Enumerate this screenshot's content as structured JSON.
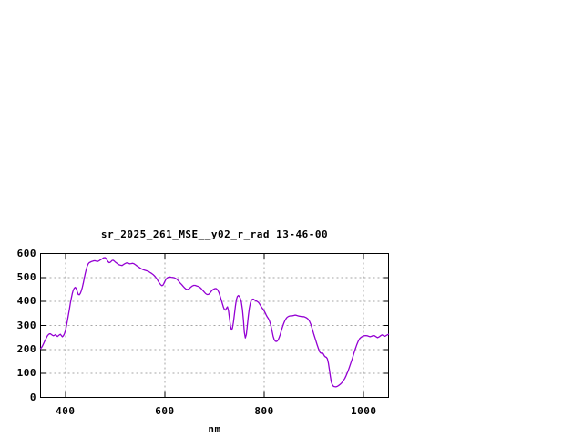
{
  "chart_data": {
    "type": "line",
    "title": "sr_2025_261_MSE__y02_r_rad 13-46-00",
    "xlabel": "nm",
    "ylabel": "",
    "xlim": [
      350,
      1050
    ],
    "ylim": [
      0,
      600
    ],
    "x_ticks": [
      400,
      600,
      800,
      1000
    ],
    "y_ticks": [
      0,
      100,
      200,
      300,
      400,
      500,
      600
    ],
    "grid": "dashed-gray-at-major-ticks",
    "legend": "none",
    "line_color": "#9400d3",
    "points": [
      [
        350,
        204
      ],
      [
        352,
        208
      ],
      [
        354,
        215
      ],
      [
        356,
        224
      ],
      [
        358,
        233
      ],
      [
        360,
        241
      ],
      [
        362,
        249
      ],
      [
        364,
        257
      ],
      [
        366,
        262
      ],
      [
        368,
        265
      ],
      [
        370,
        265
      ],
      [
        372,
        262
      ],
      [
        374,
        259
      ],
      [
        376,
        257
      ],
      [
        378,
        259
      ],
      [
        380,
        262
      ],
      [
        382,
        258
      ],
      [
        384,
        254
      ],
      [
        386,
        257
      ],
      [
        388,
        261
      ],
      [
        390,
        263
      ],
      [
        392,
        258
      ],
      [
        394,
        253
      ],
      [
        396,
        257
      ],
      [
        398,
        265
      ],
      [
        400,
        278
      ],
      [
        402,
        297
      ],
      [
        404,
        320
      ],
      [
        406,
        344
      ],
      [
        408,
        368
      ],
      [
        410,
        392
      ],
      [
        412,
        414
      ],
      [
        414,
        434
      ],
      [
        416,
        448
      ],
      [
        418,
        456
      ],
      [
        420,
        459
      ],
      [
        422,
        453
      ],
      [
        424,
        440
      ],
      [
        426,
        429
      ],
      [
        428,
        428
      ],
      [
        430,
        434
      ],
      [
        432,
        444
      ],
      [
        434,
        458
      ],
      [
        436,
        476
      ],
      [
        438,
        497
      ],
      [
        440,
        517
      ],
      [
        442,
        534
      ],
      [
        444,
        548
      ],
      [
        446,
        557
      ],
      [
        448,
        562
      ],
      [
        450,
        564
      ],
      [
        453,
        567
      ],
      [
        456,
        569
      ],
      [
        459,
        570
      ],
      [
        462,
        568
      ],
      [
        465,
        567
      ],
      [
        468,
        570
      ],
      [
        471,
        574
      ],
      [
        474,
        578
      ],
      [
        477,
        582
      ],
      [
        480,
        583
      ],
      [
        482,
        579
      ],
      [
        484,
        572
      ],
      [
        486,
        566
      ],
      [
        488,
        562
      ],
      [
        490,
        563
      ],
      [
        492,
        567
      ],
      [
        494,
        571
      ],
      [
        496,
        572
      ],
      [
        498,
        569
      ],
      [
        500,
        565
      ],
      [
        502,
        562
      ],
      [
        505,
        557
      ],
      [
        508,
        553
      ],
      [
        511,
        551
      ],
      [
        514,
        550
      ],
      [
        517,
        554
      ],
      [
        520,
        558
      ],
      [
        523,
        561
      ],
      [
        526,
        560
      ],
      [
        529,
        557
      ],
      [
        532,
        558
      ],
      [
        535,
        559
      ],
      [
        538,
        557
      ],
      [
        541,
        553
      ],
      [
        544,
        548
      ],
      [
        547,
        544
      ],
      [
        550,
        540
      ],
      [
        553,
        536
      ],
      [
        556,
        533
      ],
      [
        559,
        531
      ],
      [
        562,
        529
      ],
      [
        565,
        527
      ],
      [
        568,
        524
      ],
      [
        571,
        520
      ],
      [
        574,
        516
      ],
      [
        577,
        511
      ],
      [
        580,
        505
      ],
      [
        583,
        497
      ],
      [
        586,
        487
      ],
      [
        589,
        477
      ],
      [
        592,
        469
      ],
      [
        594,
        466
      ],
      [
        596,
        467
      ],
      [
        598,
        474
      ],
      [
        600,
        483
      ],
      [
        602,
        491
      ],
      [
        604,
        497
      ],
      [
        607,
        501
      ],
      [
        610,
        502
      ],
      [
        613,
        501
      ],
      [
        616,
        500
      ],
      [
        619,
        499
      ],
      [
        622,
        496
      ],
      [
        625,
        491
      ],
      [
        628,
        484
      ],
      [
        631,
        477
      ],
      [
        634,
        470
      ],
      [
        637,
        463
      ],
      [
        640,
        456
      ],
      [
        643,
        451
      ],
      [
        646,
        450
      ],
      [
        649,
        453
      ],
      [
        652,
        459
      ],
      [
        655,
        464
      ],
      [
        658,
        467
      ],
      [
        661,
        467
      ],
      [
        664,
        465
      ],
      [
        667,
        463
      ],
      [
        670,
        460
      ],
      [
        673,
        454
      ],
      [
        676,
        447
      ],
      [
        679,
        440
      ],
      [
        682,
        433
      ],
      [
        685,
        429
      ],
      [
        688,
        430
      ],
      [
        691,
        436
      ],
      [
        694,
        444
      ],
      [
        697,
        450
      ],
      [
        700,
        453
      ],
      [
        703,
        454
      ],
      [
        706,
        449
      ],
      [
        709,
        437
      ],
      [
        712,
        418
      ],
      [
        715,
        396
      ],
      [
        718,
        376
      ],
      [
        720,
        366
      ],
      [
        722,
        364
      ],
      [
        724,
        372
      ],
      [
        726,
        378
      ],
      [
        728,
        362
      ],
      [
        730,
        330
      ],
      [
        732,
        298
      ],
      [
        734,
        281
      ],
      [
        736,
        288
      ],
      [
        738,
        312
      ],
      [
        740,
        345
      ],
      [
        742,
        380
      ],
      [
        744,
        408
      ],
      [
        746,
        421
      ],
      [
        748,
        425
      ],
      [
        750,
        421
      ],
      [
        752,
        412
      ],
      [
        754,
        396
      ],
      [
        756,
        368
      ],
      [
        758,
        324
      ],
      [
        760,
        272
      ],
      [
        762,
        248
      ],
      [
        764,
        262
      ],
      [
        766,
        300
      ],
      [
        768,
        340
      ],
      [
        770,
        372
      ],
      [
        772,
        393
      ],
      [
        774,
        404
      ],
      [
        776,
        409
      ],
      [
        778,
        410
      ],
      [
        780,
        407
      ],
      [
        782,
        404
      ],
      [
        784,
        402
      ],
      [
        786,
        400
      ],
      [
        788,
        397
      ],
      [
        790,
        392
      ],
      [
        792,
        385
      ],
      [
        794,
        378
      ],
      [
        796,
        372
      ],
      [
        798,
        366
      ],
      [
        800,
        360
      ],
      [
        802,
        352
      ],
      [
        804,
        343
      ],
      [
        806,
        336
      ],
      [
        808,
        330
      ],
      [
        810,
        322
      ],
      [
        812,
        310
      ],
      [
        814,
        294
      ],
      [
        816,
        274
      ],
      [
        818,
        254
      ],
      [
        820,
        241
      ],
      [
        822,
        235
      ],
      [
        824,
        233
      ],
      [
        826,
        235
      ],
      [
        828,
        240
      ],
      [
        830,
        249
      ],
      [
        832,
        261
      ],
      [
        834,
        275
      ],
      [
        836,
        289
      ],
      [
        838,
        302
      ],
      [
        840,
        313
      ],
      [
        842,
        322
      ],
      [
        844,
        329
      ],
      [
        846,
        334
      ],
      [
        849,
        338
      ],
      [
        852,
        340
      ],
      [
        855,
        340
      ],
      [
        858,
        341
      ],
      [
        861,
        343
      ],
      [
        864,
        343
      ],
      [
        867,
        341
      ],
      [
        870,
        339
      ],
      [
        873,
        338
      ],
      [
        876,
        337
      ],
      [
        879,
        337
      ],
      [
        882,
        335
      ],
      [
        885,
        332
      ],
      [
        888,
        327
      ],
      [
        891,
        318
      ],
      [
        894,
        303
      ],
      [
        897,
        283
      ],
      [
        900,
        262
      ],
      [
        903,
        242
      ],
      [
        906,
        222
      ],
      [
        909,
        203
      ],
      [
        911,
        192
      ],
      [
        913,
        186
      ],
      [
        915,
        184
      ],
      [
        917,
        186
      ],
      [
        919,
        181
      ],
      [
        921,
        173
      ],
      [
        923,
        169
      ],
      [
        925,
        167
      ],
      [
        927,
        161
      ],
      [
        929,
        143
      ],
      [
        931,
        116
      ],
      [
        933,
        87
      ],
      [
        935,
        64
      ],
      [
        937,
        53
      ],
      [
        939,
        47
      ],
      [
        941,
        45
      ],
      [
        944,
        44
      ],
      [
        947,
        46
      ],
      [
        950,
        50
      ],
      [
        953,
        55
      ],
      [
        956,
        61
      ],
      [
        959,
        69
      ],
      [
        962,
        79
      ],
      [
        965,
        92
      ],
      [
        968,
        107
      ],
      [
        971,
        124
      ],
      [
        974,
        142
      ],
      [
        977,
        161
      ],
      [
        980,
        181
      ],
      [
        983,
        201
      ],
      [
        986,
        219
      ],
      [
        989,
        234
      ],
      [
        992,
        245
      ],
      [
        995,
        251
      ],
      [
        998,
        255
      ],
      [
        1001,
        257
      ],
      [
        1004,
        258
      ],
      [
        1007,
        257
      ],
      [
        1010,
        255
      ],
      [
        1013,
        253
      ],
      [
        1016,
        255
      ],
      [
        1019,
        258
      ],
      [
        1022,
        257
      ],
      [
        1025,
        253
      ],
      [
        1028,
        249
      ],
      [
        1031,
        252
      ],
      [
        1034,
        257
      ],
      [
        1037,
        261
      ],
      [
        1040,
        257
      ],
      [
        1043,
        255
      ],
      [
        1046,
        259
      ],
      [
        1050,
        263
      ]
    ]
  },
  "colors": {
    "background": "#ffffff",
    "plot_border": "#000000",
    "grid": "#a6a6a6",
    "text": "#000000",
    "line": "#9400d3"
  }
}
